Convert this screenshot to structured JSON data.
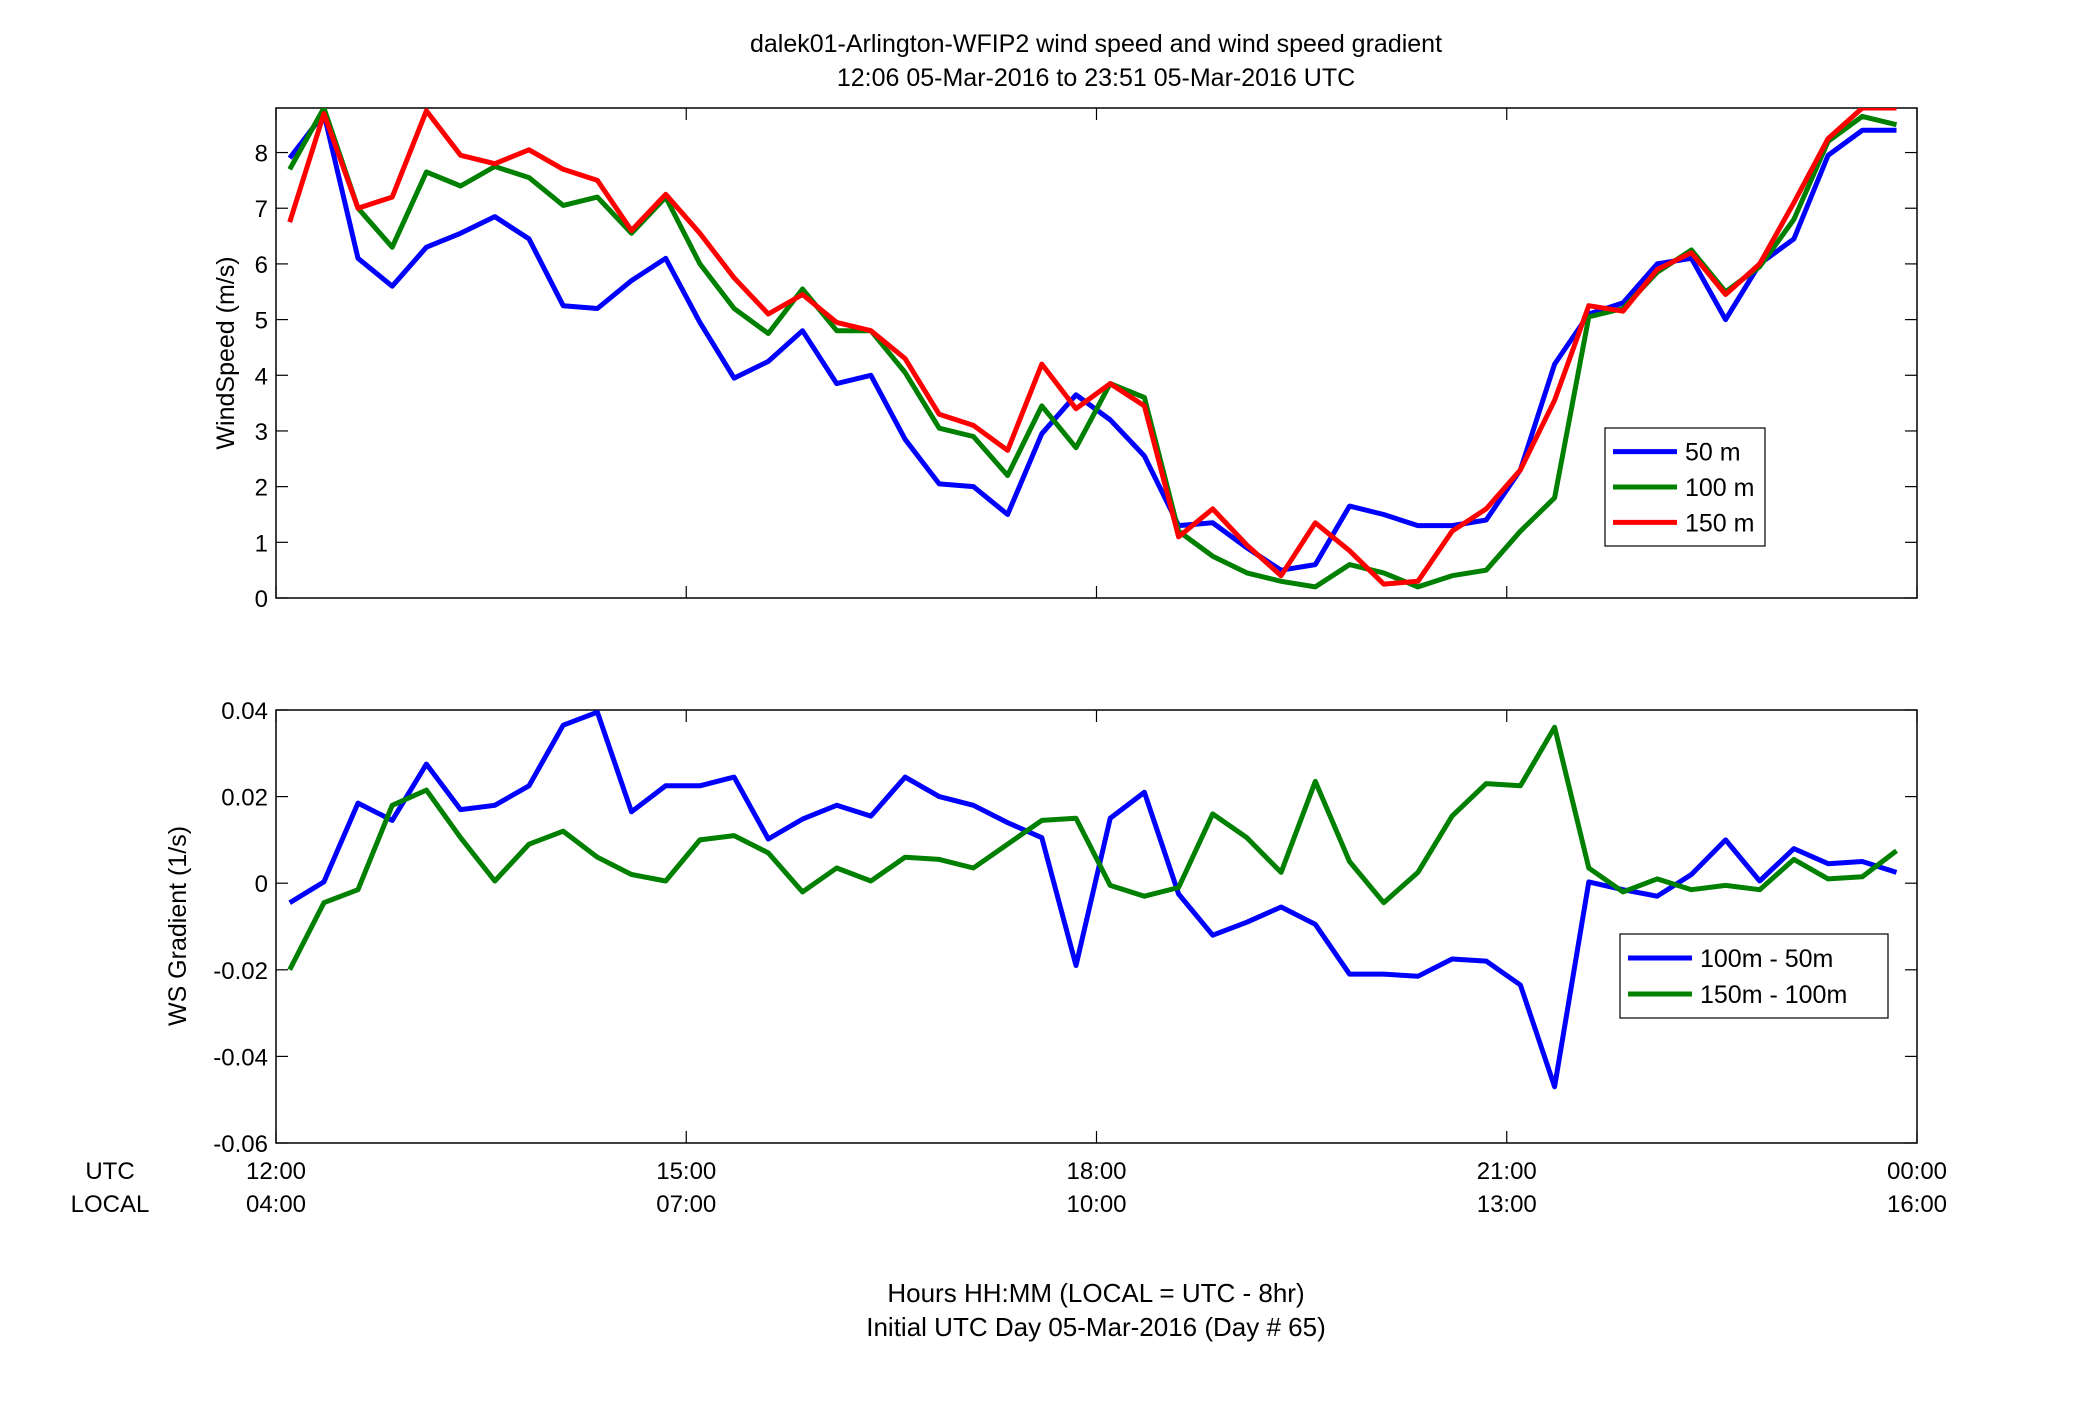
{
  "title": {
    "line1": "dalek01-Arlington-WFIP2  wind speed and wind speed gradient",
    "line2": "12:06 05-Mar-2016 to 23:51 05-Mar-2016  UTC"
  },
  "xaxis": {
    "row_labels": [
      "UTC",
      "LOCAL"
    ],
    "ticks_utc": [
      "12:00",
      "15:00",
      "18:00",
      "21:00",
      "00:00"
    ],
    "ticks_local": [
      "04:00",
      "07:00",
      "10:00",
      "13:00",
      "16:00"
    ],
    "label_line1": "Hours HH:MM  (LOCAL = UTC - 8hr)",
    "label_line2": "Initial UTC Day 05-Mar-2016 (Day # 65)"
  },
  "chart_data": [
    {
      "type": "line",
      "ylabel": "WindSpeed (m/s)",
      "ylim": [
        0,
        8.8
      ],
      "xlim": [
        12.0,
        24.0
      ],
      "yticks": [
        "0",
        "1",
        "2",
        "3",
        "4",
        "5",
        "6",
        "7",
        "8"
      ],
      "legend_placement": "bottom-right",
      "grid": false,
      "x": [
        12.1,
        12.35,
        12.6,
        12.85,
        13.1,
        13.35,
        13.6,
        13.85,
        14.1,
        14.35,
        14.6,
        14.85,
        15.1,
        15.35,
        15.6,
        15.85,
        16.1,
        16.35,
        16.6,
        16.85,
        17.1,
        17.35,
        17.6,
        17.85,
        18.1,
        18.35,
        18.6,
        18.85,
        19.1,
        19.35,
        19.6,
        19.85,
        20.1,
        20.35,
        20.6,
        20.85,
        21.1,
        21.35,
        21.6,
        21.85,
        22.1,
        22.35,
        22.6,
        22.85,
        23.1,
        23.35,
        23.6,
        23.85
      ],
      "series": [
        {
          "name": "50 m",
          "color": "#0000ff",
          "values": [
            7.9,
            8.7,
            6.1,
            5.6,
            6.3,
            6.55,
            6.85,
            6.45,
            5.25,
            5.2,
            5.7,
            6.1,
            4.95,
            3.95,
            4.25,
            4.8,
            3.85,
            4.0,
            2.85,
            2.05,
            2.0,
            1.5,
            2.95,
            3.65,
            3.2,
            2.55,
            1.3,
            1.35,
            0.9,
            0.5,
            0.6,
            1.65,
            1.5,
            1.3,
            1.3,
            1.4,
            2.3,
            4.2,
            5.1,
            5.3,
            6.0,
            6.1,
            5.0,
            6.0,
            6.45,
            7.95,
            8.4,
            8.4
          ]
        },
        {
          "name": "100 m",
          "color": "#008000",
          "values": [
            7.7,
            8.8,
            7.0,
            6.3,
            7.65,
            7.4,
            7.75,
            7.55,
            7.05,
            7.2,
            6.55,
            7.2,
            6.0,
            5.2,
            4.75,
            5.55,
            4.8,
            4.8,
            4.05,
            3.05,
            2.9,
            2.2,
            3.45,
            2.7,
            3.85,
            3.6,
            1.2,
            0.75,
            0.45,
            0.3,
            0.2,
            0.6,
            0.45,
            0.2,
            0.4,
            0.5,
            1.2,
            1.8,
            5.05,
            5.2,
            5.85,
            6.25,
            5.5,
            5.95,
            6.8,
            8.2,
            8.65,
            8.5
          ]
        },
        {
          "name": "150 m",
          "color": "#ff0000",
          "values": [
            6.75,
            8.7,
            7.0,
            7.2,
            8.75,
            7.95,
            7.8,
            8.05,
            7.7,
            7.5,
            6.6,
            7.25,
            6.55,
            5.75,
            5.1,
            5.45,
            4.95,
            4.8,
            4.3,
            3.3,
            3.1,
            2.65,
            4.2,
            3.4,
            3.85,
            3.45,
            1.1,
            1.6,
            0.95,
            0.4,
            1.35,
            0.85,
            0.25,
            0.3,
            1.2,
            1.6,
            2.3,
            3.55,
            5.25,
            5.15,
            5.9,
            6.2,
            5.45,
            6.0,
            7.1,
            8.25,
            8.8,
            8.8
          ]
        }
      ]
    },
    {
      "type": "line",
      "ylabel": "WS Gradient (1/s)",
      "ylim": [
        -0.06,
        0.04
      ],
      "xlim": [
        12.0,
        24.0
      ],
      "yticks": [
        "-0.06",
        "-0.04",
        "-0.02",
        "0",
        "0.02",
        "0.04"
      ],
      "legend_placement": "bottom-right",
      "grid": false,
      "x": [
        12.1,
        12.35,
        12.6,
        12.85,
        13.1,
        13.35,
        13.6,
        13.85,
        14.1,
        14.35,
        14.6,
        14.85,
        15.1,
        15.35,
        15.6,
        15.85,
        16.1,
        16.35,
        16.6,
        16.85,
        17.1,
        17.35,
        17.6,
        17.85,
        18.1,
        18.35,
        18.6,
        18.85,
        19.1,
        19.35,
        19.6,
        19.85,
        20.1,
        20.35,
        20.6,
        20.85,
        21.1,
        21.35,
        21.6,
        21.85,
        22.1,
        22.35,
        22.6,
        22.85,
        23.1,
        23.35,
        23.6,
        23.85
      ],
      "series": [
        {
          "name": "100m - 50m",
          "color": "#0000ff",
          "values": [
            -0.0045,
            0.0003,
            0.0185,
            0.0145,
            0.0275,
            0.017,
            0.018,
            0.0225,
            0.0365,
            0.0395,
            0.0165,
            0.0225,
            0.0225,
            0.0245,
            0.0102,
            0.0148,
            0.018,
            0.0155,
            0.0245,
            0.02,
            0.018,
            0.014,
            0.0105,
            -0.019,
            0.015,
            0.021,
            -0.0025,
            -0.012,
            -0.009,
            -0.0055,
            -0.0095,
            -0.021,
            -0.021,
            -0.0215,
            -0.0175,
            -0.018,
            -0.0235,
            -0.047,
            0.0003,
            -0.0015,
            -0.003,
            0.002,
            0.01,
            0.0005,
            0.008,
            0.0045,
            0.005,
            0.0025
          ]
        },
        {
          "name": "150m - 100m",
          "color": "#008000",
          "values": [
            -0.02,
            -0.0045,
            -0.0015,
            0.018,
            0.0215,
            0.0105,
            0.0005,
            0.009,
            0.012,
            0.006,
            0.002,
            0.0005,
            0.01,
            0.011,
            0.007,
            -0.002,
            0.0035,
            0.0005,
            0.006,
            0.0055,
            0.0035,
            0.009,
            0.0145,
            0.015,
            -0.0005,
            -0.003,
            -0.001,
            0.016,
            0.0105,
            0.0025,
            0.0235,
            0.005,
            -0.0045,
            0.0025,
            0.0155,
            0.023,
            0.0225,
            0.036,
            0.0035,
            -0.002,
            0.001,
            -0.0015,
            -0.0005,
            -0.0015,
            0.0055,
            0.001,
            0.0015,
            0.0075
          ]
        }
      ]
    }
  ]
}
